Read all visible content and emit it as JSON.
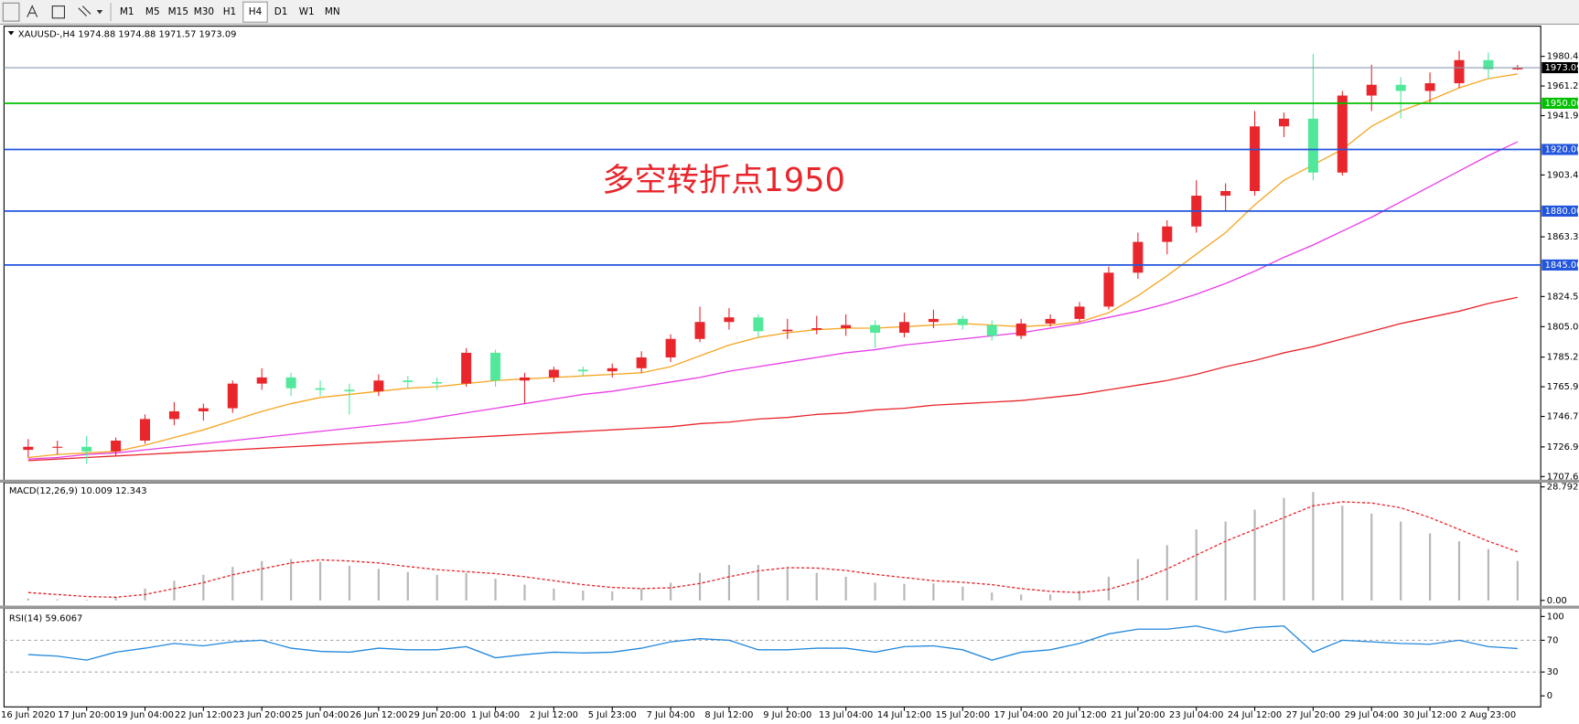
{
  "toolbar": {
    "timeframes": [
      "M1",
      "M5",
      "M15",
      "M30",
      "H1",
      "H4",
      "D1",
      "W1",
      "MN"
    ],
    "active": "H4"
  },
  "chart_data": [
    {
      "type": "candlestick",
      "title": "XAUUSD-,H4 1974.88 1974.88 1971.57 1973.09",
      "annotation": "多空转折点1950",
      "annotation_color": "#e8262c",
      "up_color": "#e8262c",
      "down_color": "#52e89c",
      "open": [
        1725,
        1727,
        1727,
        1724,
        1731,
        1745,
        1750,
        1752,
        1768,
        1772,
        1765,
        1764,
        1763,
        1770,
        1769,
        1768,
        1788,
        1770,
        1772,
        1777,
        1776,
        1778,
        1785,
        1797,
        1808,
        1811,
        1802,
        1803,
        1804,
        1806,
        1801,
        1808,
        1810,
        1806,
        1799,
        1807,
        1810,
        1818,
        1840,
        1860,
        1870,
        1890,
        1893,
        1935,
        1940,
        1905,
        1955,
        1962,
        1958,
        1963,
        1978,
        1972
      ],
      "high": [
        1732,
        1731,
        1734,
        1733,
        1748,
        1756,
        1755,
        1770,
        1778,
        1775,
        1770,
        1768,
        1774,
        1773,
        1772,
        1791,
        1790,
        1775,
        1779,
        1779,
        1781,
        1789,
        1800,
        1818,
        1817,
        1813,
        1810,
        1812,
        1813,
        1809,
        1814,
        1816,
        1812,
        1809,
        1810,
        1813,
        1821,
        1844,
        1866,
        1874,
        1900,
        1898,
        1945,
        1944,
        1982,
        1958,
        1975,
        1967,
        1970,
        1984,
        1983,
        1974.88
      ],
      "low": [
        1720,
        1722,
        1716,
        1721,
        1729,
        1741,
        1744,
        1749,
        1764,
        1760,
        1760,
        1748,
        1760,
        1765,
        1764,
        1766,
        1766,
        1755,
        1769,
        1773,
        1772,
        1775,
        1782,
        1795,
        1803,
        1798,
        1797,
        1800,
        1799,
        1791,
        1798,
        1804,
        1803,
        1796,
        1797,
        1805,
        1808,
        1816,
        1836,
        1852,
        1866,
        1880,
        1890,
        1928,
        1900,
        1903,
        1945,
        1940,
        1950,
        1960,
        1966,
        1971.57
      ],
      "close": [
        1727,
        1727,
        1724,
        1731,
        1745,
        1750,
        1752,
        1768,
        1772,
        1765,
        1764,
        1763,
        1770,
        1769,
        1768,
        1788,
        1770,
        1772,
        1777,
        1776,
        1778,
        1785,
        1797,
        1808,
        1811,
        1802,
        1803,
        1804,
        1806,
        1801,
        1808,
        1810,
        1806,
        1799,
        1807,
        1810,
        1818,
        1840,
        1860,
        1870,
        1890,
        1893,
        1935,
        1940,
        1905,
        1955,
        1962,
        1958,
        1963,
        1978,
        1972,
        1973.09
      ],
      "lines": [
        {
          "color": "#f5a623",
          "values": [
            1720,
            1722,
            1723,
            1724,
            1728,
            1733,
            1738,
            1744,
            1750,
            1755,
            1759,
            1761,
            1763,
            1765,
            1766,
            1768,
            1770,
            1771,
            1772,
            1773,
            1774,
            1775,
            1779,
            1786,
            1793,
            1798,
            1801,
            1803,
            1804,
            1804,
            1805,
            1806,
            1807,
            1806,
            1805,
            1806,
            1808,
            1814,
            1825,
            1838,
            1852,
            1866,
            1884,
            1900,
            1910,
            1920,
            1935,
            1945,
            1952,
            1960,
            1966,
            1969
          ]
        },
        {
          "color": "#e83ee8",
          "values": [
            1719,
            1720,
            1722,
            1723,
            1725,
            1727,
            1729,
            1731,
            1733,
            1735,
            1737,
            1739,
            1741,
            1743,
            1746,
            1749,
            1752,
            1755,
            1758,
            1761,
            1763,
            1766,
            1769,
            1772,
            1776,
            1779,
            1782,
            1785,
            1788,
            1790,
            1793,
            1795,
            1797,
            1799,
            1801,
            1804,
            1807,
            1811,
            1815,
            1820,
            1826,
            1833,
            1841,
            1850,
            1858,
            1867,
            1876,
            1886,
            1896,
            1906,
            1916,
            1925
          ]
        },
        {
          "color": "#e8262c",
          "values": [
            1718,
            1719,
            1720,
            1721,
            1722,
            1723,
            1724,
            1725,
            1726,
            1727,
            1728,
            1729,
            1730,
            1731,
            1732,
            1733,
            1734,
            1735,
            1736,
            1737,
            1738,
            1739,
            1740,
            1742,
            1743,
            1745,
            1746,
            1748,
            1749,
            1751,
            1752,
            1754,
            1755,
            1756,
            1757,
            1759,
            1761,
            1764,
            1767,
            1770,
            1774,
            1779,
            1783,
            1788,
            1792,
            1797,
            1802,
            1807,
            1811,
            1815,
            1820,
            1824
          ]
        }
      ],
      "hlines": [
        {
          "value": 1973.09,
          "color": "#8a9bb0",
          "label_bg": "#000000"
        },
        {
          "value": 1950,
          "label": "1950.00",
          "color": "#00c000",
          "label_bg": "#00c000"
        },
        {
          "value": 1920,
          "label": "1920.00",
          "color": "#2255dd",
          "label_bg": "#2255dd"
        },
        {
          "value": 1880,
          "label": "1880.00",
          "color": "#2255dd",
          "label_bg": "#2255dd"
        },
        {
          "value": 1845,
          "label": "1845.00",
          "color": "#2255dd",
          "label_bg": "#2255dd"
        }
      ],
      "ylim": [
        1705,
        1999.4
      ],
      "yticks": [
        1980.45,
        {
          "value": 1961.2,
          "label": "1961.20"
        },
        1941.95,
        1903.45,
        {
          "value": 1863.3,
          "label": "1863.30"
        },
        1824.55,
        {
          "value": 1805,
          "label": "1805.00"
        },
        {
          "value": 1785.2,
          "label": "1785.20"
        },
        1765.95,
        {
          "value": 1746.7,
          "label": "1746.70"
        },
        {
          "value": 1726.9,
          "label": "1726.90"
        },
        1707.65
      ],
      "grid": false
    },
    {
      "type": "macd",
      "title": "MACD(12,26,9) 10.009 12.343",
      "color": "#b8b8b8",
      "values": [
        0.5,
        0.3,
        0.2,
        0.8,
        3,
        5,
        6.5,
        8.5,
        10,
        10.5,
        9.8,
        8.8,
        8,
        7.2,
        6.5,
        7,
        5.5,
        4,
        3,
        2.5,
        2.3,
        3,
        4.5,
        7,
        9,
        9,
        8,
        7,
        6,
        4.5,
        4.2,
        4.3,
        3.5,
        2,
        1.5,
        1.5,
        2.5,
        6,
        10.5,
        14,
        18,
        20,
        23,
        26,
        27.5,
        24,
        22,
        20,
        17,
        15,
        13,
        10.009
      ],
      "signal": {
        "color": "#e8262c",
        "values": [
          2,
          1.5,
          1,
          0.8,
          1.5,
          3,
          4.5,
          6.5,
          8,
          9.5,
          10.3,
          10,
          9.5,
          8.6,
          7.8,
          7.3,
          6.8,
          6,
          5,
          4,
          3.3,
          3,
          3.2,
          4.3,
          6,
          7.5,
          8.3,
          8.2,
          7.6,
          6.6,
          5.8,
          5,
          4.6,
          4,
          3,
          2.3,
          2,
          2.8,
          5,
          8,
          11.5,
          15,
          18,
          21,
          24,
          25,
          24.7,
          23.5,
          21,
          18,
          15,
          12.343
        ]
      },
      "ylim": [
        -1.5,
        29.6
      ],
      "yticks": [
        28.792,
        {
          "value": 0,
          "label": "0.00"
        }
      ]
    },
    {
      "type": "line",
      "title": "RSI(14) 59.6067",
      "color": "#2288dd",
      "values": [
        52,
        50,
        45,
        55,
        60,
        66,
        63,
        68,
        70,
        60,
        56,
        55,
        60,
        58,
        58,
        62,
        48,
        52,
        55,
        54,
        55,
        60,
        68,
        72,
        70,
        58,
        58,
        60,
        60,
        55,
        62,
        63,
        58,
        45,
        55,
        58,
        66,
        78,
        84,
        84,
        88,
        80,
        86,
        88,
        55,
        70,
        68,
        66,
        65,
        70,
        62,
        59.6067
      ],
      "levels": [
        70,
        30
      ],
      "ylim": [
        -13.9,
        108.9
      ],
      "yticks": [
        100,
        70,
        30,
        0
      ],
      "x": [
        "16 Jun 2020",
        null,
        "17 Jun 20:00",
        null,
        "19 Jun 04:00",
        null,
        "22 Jun 12:00",
        null,
        "23 Jun 20:00",
        null,
        "25 Jun 04:00",
        null,
        "26 Jun 12:00",
        null,
        "29 Jun 20:00",
        null,
        "1 Jul 04:00",
        null,
        "2 Jul 12:00",
        null,
        "5 Jul 23:00",
        null,
        "7 Jul 04:00",
        null,
        "8 Jul 12:00",
        null,
        "9 Jul 20:00",
        null,
        "13 Jul 04:00",
        null,
        "14 Jul 12:00",
        null,
        "15 Jul 20:00",
        null,
        "17 Jul 04:00",
        null,
        "20 Jul 12:00",
        null,
        "21 Jul 20:00",
        null,
        "23 Jul 04:00",
        null,
        "24 Jul 12:00",
        null,
        "27 Jul 20:00",
        null,
        "29 Jul 04:00",
        null,
        "30 Jul 12:00",
        null,
        "2 Aug 23:00",
        null
      ]
    }
  ]
}
